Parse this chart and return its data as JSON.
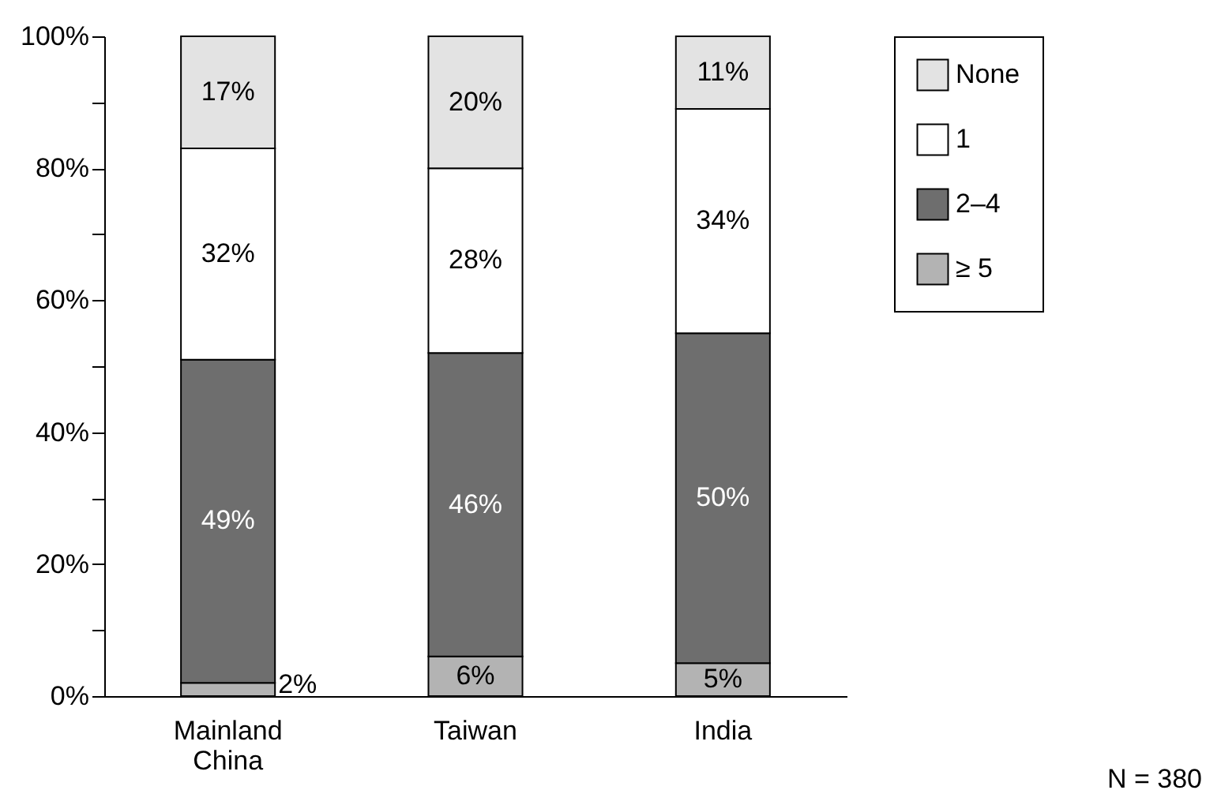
{
  "chart_data": {
    "type": "bar",
    "stacked": true,
    "categories": [
      "Mainland China",
      "Taiwan",
      "India"
    ],
    "series": [
      {
        "name": "≥ 5",
        "color": "#b3b3b3",
        "values": [
          2,
          6,
          5
        ],
        "value_labels": [
          "2%",
          "6%",
          "5%"
        ]
      },
      {
        "name": "2–4",
        "color": "#6e6e6e",
        "values": [
          49,
          46,
          50
        ],
        "value_labels": [
          "49%",
          "46%",
          "50%"
        ]
      },
      {
        "name": "1",
        "color": "#ffffff",
        "values": [
          32,
          28,
          34
        ],
        "value_labels": [
          "32%",
          "28%",
          "34%"
        ]
      },
      {
        "name": "None",
        "color": "#e3e3e3",
        "values": [
          17,
          20,
          11
        ],
        "value_labels": [
          "17%",
          "20%",
          "11%"
        ]
      }
    ],
    "ylim": [
      0,
      100
    ],
    "yticks": [
      {
        "value": 0,
        "label": "0%"
      },
      {
        "value": 10,
        "label": null
      },
      {
        "value": 20,
        "label": "20%"
      },
      {
        "value": 30,
        "label": null
      },
      {
        "value": 40,
        "label": "40%"
      },
      {
        "value": 50,
        "label": null
      },
      {
        "value": 60,
        "label": "60%"
      },
      {
        "value": 70,
        "label": null
      },
      {
        "value": 80,
        "label": "80%"
      },
      {
        "value": 90,
        "label": null
      },
      {
        "value": 100,
        "label": "100%"
      }
    ],
    "grid": false,
    "legend": "right",
    "annotations": [
      "N = 380"
    ]
  }
}
